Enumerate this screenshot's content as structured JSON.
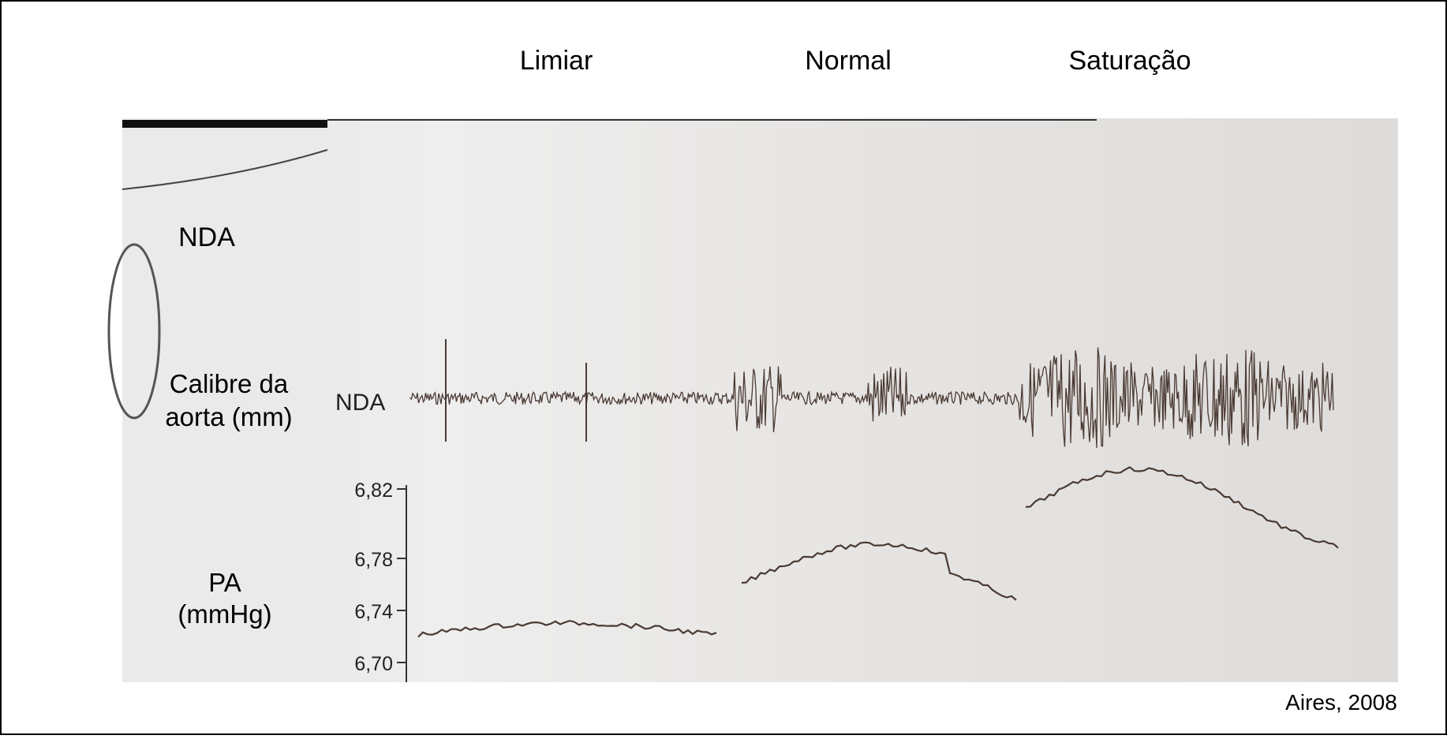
{
  "header": {
    "columns": [
      "Limiar",
      "Normal",
      "Saturação"
    ]
  },
  "labels": {
    "nda": "NDA",
    "calibre": [
      "Calibre da",
      "aorta (mm)"
    ],
    "pa": [
      "PA",
      "(mmHg)"
    ]
  },
  "figure": {
    "trace_label": "NDA",
    "axis_ticks": [
      "6,82",
      "6,78",
      "6,74",
      "6,70"
    ]
  },
  "credit": "Aires, 2008"
}
